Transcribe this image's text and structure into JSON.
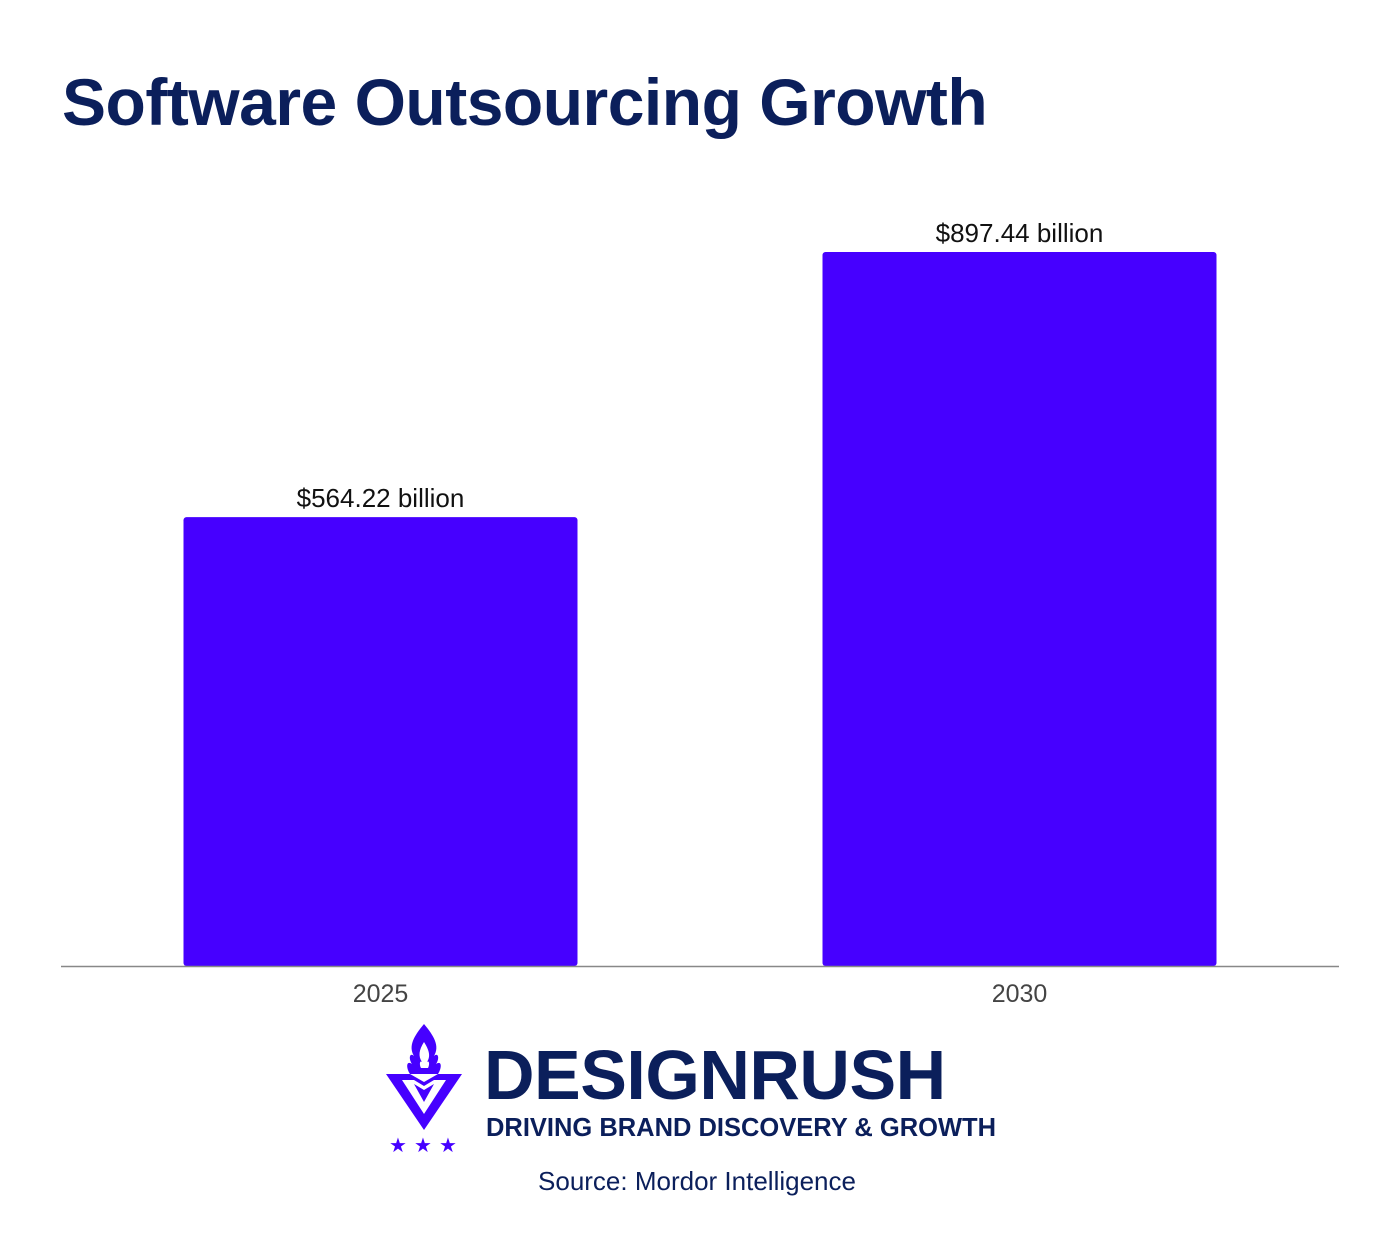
{
  "header": {
    "title": "Software Outsourcing Growth"
  },
  "chart_data": {
    "type": "bar",
    "title": "Software Outsourcing Growth",
    "categories": [
      "2025",
      "2030"
    ],
    "values": [
      564.22,
      897.44
    ],
    "data_labels": [
      "$564.22 billion",
      "$897.44 billion"
    ],
    "xlabel": "",
    "ylabel": "",
    "ylim": [
      0,
      897.44
    ],
    "grid": false,
    "legend": "none",
    "colors": {
      "bar": "#4600ff",
      "axis": "#888888",
      "tick_label": "#444444",
      "data_label": "#111111"
    }
  },
  "brand": {
    "name": "DESIGNRUSH",
    "tagline": "DRIVING BRAND DISCOVERY & GROWTH",
    "logo_icon": "designrush-torch-icon",
    "primary_color": "#0b1f5b",
    "accent_color": "#4600ff"
  },
  "footer": {
    "source": "Source: Mordor Intelligence"
  }
}
